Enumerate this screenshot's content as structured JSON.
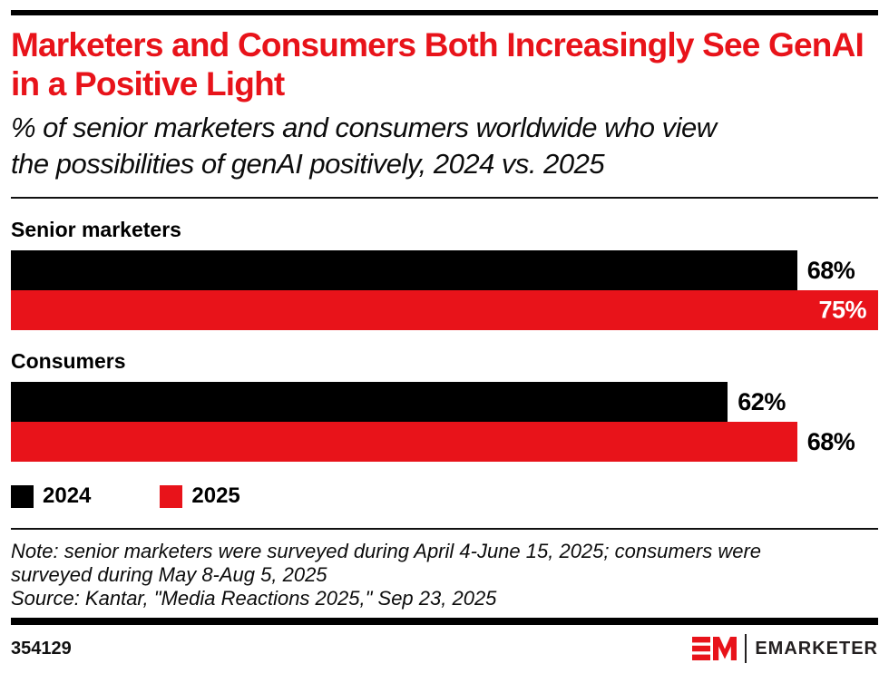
{
  "header": {
    "title": "Marketers and Consumers Both Increasingly See GenAI in a Positive Light",
    "subtitle": "% of senior marketers and consumers worldwide who view the possibilities of genAI positively, 2024 vs. 2025"
  },
  "chart_data": {
    "type": "bar",
    "orientation": "horizontal",
    "categories": [
      "Senior marketers",
      "Consumers"
    ],
    "series": [
      {
        "name": "2024",
        "color": "#000000",
        "values": [
          68,
          62
        ]
      },
      {
        "name": "2025",
        "color": "#e8131a",
        "values": [
          75,
          68
        ]
      }
    ],
    "value_suffix": "%",
    "xlim": [
      0,
      75
    ],
    "grid": false,
    "legend_position": "bottom-left",
    "title": "Marketers and Consumers Both Increasingly See GenAI in a Positive Light",
    "xlabel": "",
    "ylabel": ""
  },
  "notes": {
    "note": "Note: senior marketers were surveyed during April 4-June 15, 2025; consumers were surveyed during May 8-Aug 5, 2025",
    "source": "Source: Kantar, \"Media Reactions 2025,\" Sep 23, 2025"
  },
  "footer": {
    "chart_id": "354129",
    "brand": "EMARKETER"
  },
  "colors": {
    "accent_red": "#e8131a",
    "bar_black": "#000000",
    "logo_dark": "#231f20"
  }
}
